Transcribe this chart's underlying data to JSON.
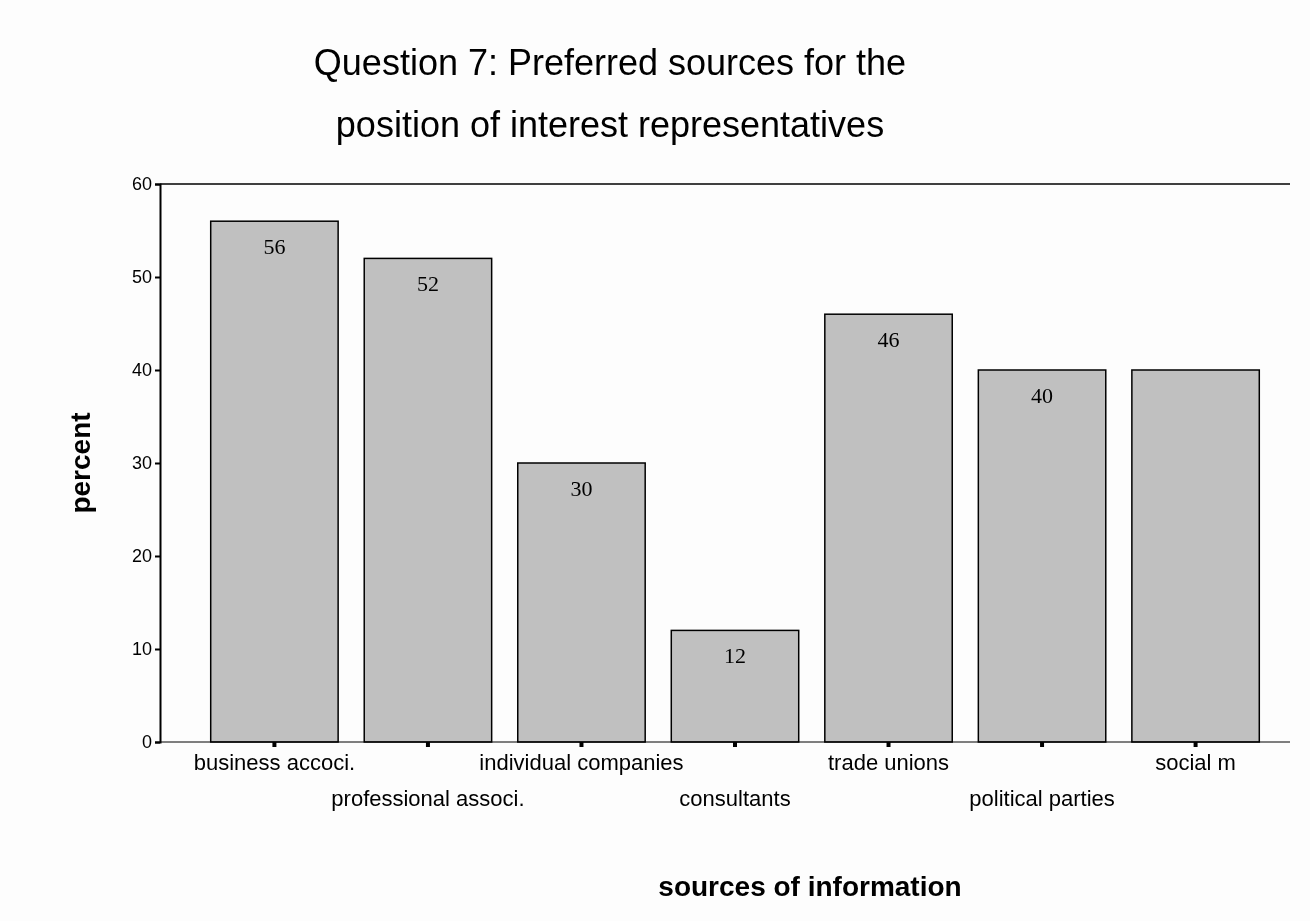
{
  "chart_data": {
    "type": "bar",
    "title": "Question 7: Preferred sources for the position of interest representatives",
    "xlabel": "sources of information",
    "ylabel": "percent",
    "categories": [
      "business accoci.",
      "professional associ.",
      "individual companies",
      "consultants",
      "trade unions",
      "political parties",
      "social m"
    ],
    "values": [
      56,
      52,
      30,
      12,
      46,
      40,
      40
    ],
    "value_labels": [
      "56",
      "52",
      "30",
      "12",
      "46",
      "40",
      null
    ],
    "color": "#c0c0c0",
    "ylim": [
      0,
      60
    ],
    "yticks": [
      0,
      10,
      20,
      30,
      40,
      50,
      60
    ]
  }
}
